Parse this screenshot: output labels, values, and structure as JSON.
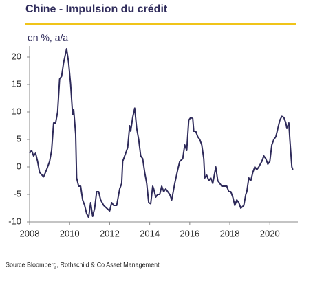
{
  "chart_data": {
    "type": "line",
    "title": "Chine - Impulsion du crédit",
    "subtitle": "en %, a/a",
    "source": "Source Bloomberg, Rothschild & Co Asset Management",
    "xlim": [
      2008,
      2021.4
    ],
    "xticks": [
      2008,
      2010,
      2012,
      2014,
      2016,
      2018,
      2020
    ],
    "ylim": [
      -10,
      22
    ],
    "yticks": [
      -10,
      -5,
      0,
      5,
      10,
      15,
      20
    ],
    "grid": false,
    "x": [
      2008.0,
      2008.1,
      2008.2,
      2008.3,
      2008.4,
      2008.5,
      2008.7,
      2008.85,
      2009.0,
      2009.1,
      2009.2,
      2009.3,
      2009.4,
      2009.5,
      2009.6,
      2009.7,
      2009.85,
      2009.95,
      2010.05,
      2010.15,
      2010.2,
      2010.3,
      2010.35,
      2010.45,
      2010.55,
      2010.65,
      2010.75,
      2010.85,
      2010.95,
      2011.05,
      2011.15,
      2011.25,
      2011.35,
      2011.45,
      2011.55,
      2011.7,
      2011.85,
      2012.0,
      2012.1,
      2012.2,
      2012.35,
      2012.5,
      2012.6,
      2012.65,
      2012.8,
      2012.9,
      2013.0,
      2013.05,
      2013.15,
      2013.25,
      2013.35,
      2013.45,
      2013.55,
      2013.65,
      2013.75,
      2013.85,
      2013.95,
      2014.05,
      2014.15,
      2014.2,
      2014.3,
      2014.4,
      2014.5,
      2014.6,
      2014.7,
      2014.8,
      2014.9,
      2015.0,
      2015.1,
      2015.25,
      2015.4,
      2015.5,
      2015.65,
      2015.75,
      2015.85,
      2015.95,
      2016.05,
      2016.15,
      2016.2,
      2016.3,
      2016.4,
      2016.5,
      2016.6,
      2016.7,
      2016.75,
      2016.85,
      2016.95,
      2017.05,
      2017.15,
      2017.25,
      2017.3,
      2017.4,
      2017.5,
      2017.6,
      2017.7,
      2017.85,
      2017.95,
      2018.05,
      2018.15,
      2018.25,
      2018.35,
      2018.45,
      2018.55,
      2018.7,
      2018.8,
      2018.85,
      2018.95,
      2019.05,
      2019.15,
      2019.25,
      2019.35,
      2019.45,
      2019.6,
      2019.7,
      2019.8,
      2019.9,
      2020.0,
      2020.1,
      2020.2,
      2020.3,
      2020.4,
      2020.5,
      2020.6,
      2020.7,
      2020.8,
      2020.85,
      2020.95,
      2021.0,
      2021.1,
      2021.15
    ],
    "series": [
      {
        "color": "#2e2a5a",
        "values": [
          2.5,
          3,
          2,
          2.5,
          1,
          -1,
          -1.8,
          -0.5,
          1,
          3,
          8,
          8,
          10,
          16,
          16.5,
          19,
          21.5,
          19,
          15,
          9.5,
          10.5,
          6,
          -2,
          -3.5,
          -3.5,
          -6,
          -7,
          -8.5,
          -9.2,
          -6.5,
          -9,
          -7.5,
          -4.5,
          -4.5,
          -6,
          -7,
          -7.5,
          -8,
          -6.5,
          -7,
          -7,
          -4,
          -3,
          1,
          2.5,
          3.5,
          7.5,
          6.5,
          9,
          10.7,
          7,
          5,
          2,
          1.5,
          -1,
          -3,
          -6.5,
          -6.7,
          -3.5,
          -4,
          -5.5,
          -5,
          -5,
          -3.5,
          -4.5,
          -4,
          -4.5,
          -5,
          -6,
          -3,
          -0.5,
          1,
          1.5,
          4,
          3,
          8.5,
          9,
          8.8,
          6.5,
          6.5,
          5.5,
          5,
          4,
          1.5,
          -2,
          -1.5,
          -2.5,
          -2,
          -3,
          -1,
          0,
          -2.5,
          -3,
          -3.5,
          -3.5,
          -3.5,
          -4.5,
          -4.5,
          -5.5,
          -7,
          -6,
          -6.5,
          -7.5,
          -7,
          -5,
          -4.5,
          -2,
          -2.5,
          -1,
          0,
          -0.5,
          0,
          1,
          2,
          1.5,
          0.5,
          1,
          4,
          5,
          5.5,
          7,
          8.5,
          9.2,
          9,
          8,
          7,
          8,
          5,
          0,
          -0.5
        ]
      }
    ]
  }
}
